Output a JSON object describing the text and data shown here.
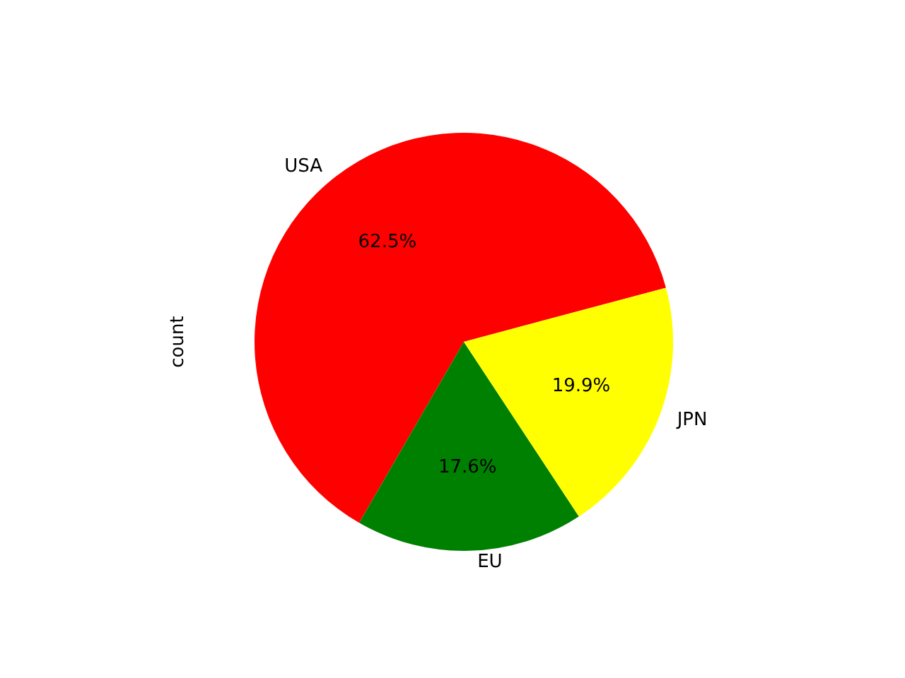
{
  "chart_data": {
    "type": "pie",
    "ylabel": "count",
    "categories": [
      "USA",
      "EU",
      "JPN"
    ],
    "values": [
      62.5,
      17.6,
      19.9
    ],
    "colors": [
      "#ff0000",
      "#008000",
      "#ffff00"
    ],
    "value_labels": [
      "62.5%",
      "17.6%",
      "19.9%"
    ],
    "legend": false
  }
}
